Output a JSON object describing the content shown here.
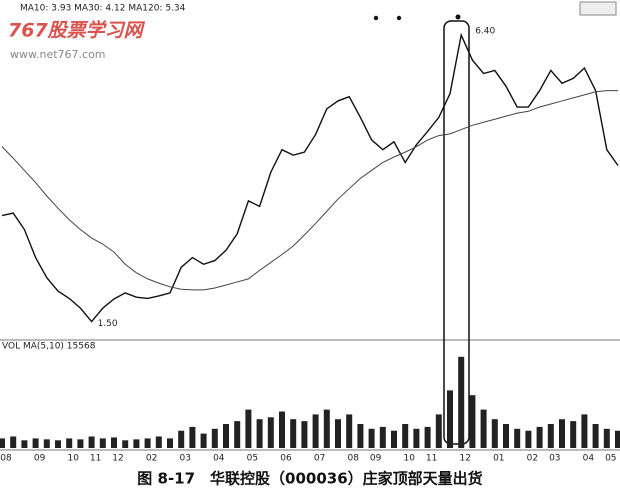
{
  "watermark": {
    "title": "767股票学习网",
    "url": "www.net767.com"
  },
  "caption": "图 8-17　华联控股（000036）庄家顶部天量出货",
  "chart_data": [
    {
      "type": "line",
      "legend_text": "MA10: 3.93 MA30: 4.12 MA120: 5.34",
      "low_label": "1.50",
      "high_label": "6.40",
      "ylim": [
        1.3,
        6.6
      ],
      "series": [
        {
          "name": "K",
          "color": "#111111",
          "values": [
            3.31,
            3.35,
            3.08,
            2.62,
            2.29,
            2.07,
            1.95,
            1.79,
            1.57,
            1.79,
            1.94,
            2.04,
            1.97,
            1.95,
            1.99,
            2.04,
            2.46,
            2.62,
            2.51,
            2.57,
            2.74,
            3.01,
            3.55,
            3.46,
            4.02,
            4.39,
            4.3,
            4.35,
            4.64,
            5.06,
            5.19,
            5.26,
            4.92,
            4.55,
            4.39,
            4.52,
            4.18,
            4.47,
            4.69,
            4.92,
            5.31,
            6.27,
            5.86,
            5.64,
            5.69,
            5.43,
            5.09,
            5.09,
            5.36,
            5.69,
            5.48,
            5.56,
            5.73,
            5.36,
            4.39,
            4.13
          ]
        },
        {
          "name": "MA120",
          "color": "#444444",
          "values": [
            4.44,
            4.25,
            4.05,
            3.85,
            3.63,
            3.43,
            3.24,
            3.08,
            2.94,
            2.84,
            2.71,
            2.51,
            2.37,
            2.27,
            2.2,
            2.14,
            2.1,
            2.09,
            2.09,
            2.12,
            2.17,
            2.22,
            2.27,
            2.41,
            2.54,
            2.67,
            2.81,
            2.99,
            3.18,
            3.38,
            3.58,
            3.75,
            3.92,
            4.05,
            4.18,
            4.27,
            4.35,
            4.44,
            4.55,
            4.62,
            4.65,
            4.72,
            4.79,
            4.84,
            4.89,
            4.94,
            4.99,
            5.02,
            5.09,
            5.14,
            5.19,
            5.24,
            5.29,
            5.34,
            5.36,
            5.36
          ]
        }
      ]
    },
    {
      "type": "bar",
      "title": "VOL MA(5,10) 15568",
      "ylim": [
        0,
        100
      ],
      "color": "#222222",
      "categories": [
        "08",
        null,
        null,
        "09",
        null,
        null,
        "10",
        null,
        "11",
        null,
        "12",
        null,
        null,
        "02",
        null,
        null,
        "03",
        null,
        null,
        "04",
        null,
        null,
        "05",
        null,
        null,
        "06",
        null,
        null,
        "07",
        null,
        null,
        "08",
        null,
        "09",
        null,
        null,
        "10",
        null,
        "11",
        null,
        null,
        "12",
        null,
        null,
        "01",
        null,
        null,
        "02",
        null,
        "03",
        null,
        null,
        "04",
        null,
        "05",
        null
      ],
      "values": [
        10,
        12,
        8,
        10,
        9,
        8,
        10,
        9,
        12,
        10,
        11,
        8,
        9,
        10,
        12,
        10,
        18,
        22,
        15,
        20,
        25,
        28,
        40,
        30,
        32,
        38,
        30,
        28,
        35,
        40,
        30,
        35,
        25,
        20,
        22,
        18,
        25,
        20,
        22,
        35,
        60,
        95,
        55,
        40,
        30,
        25,
        20,
        18,
        22,
        25,
        30,
        28,
        35,
        25,
        20,
        18
      ]
    }
  ]
}
